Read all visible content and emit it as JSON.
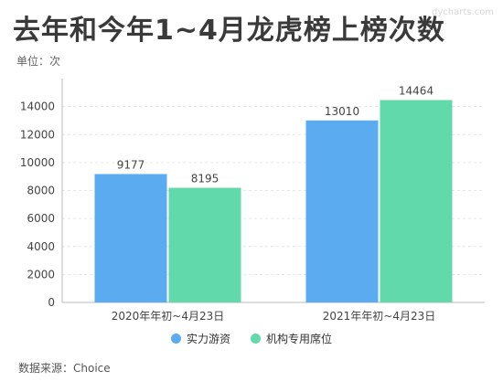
{
  "title": "去年和今年1~4月龙虎榜上榜次数",
  "unit_label": "单位：次",
  "watermark": "dycharts.com",
  "source": "数据来源：Choice",
  "colors": {
    "series_0": "#5aabf0",
    "series_1": "#62d9ab",
    "axis": "#bbbbbb",
    "grid": "#e6e6e6"
  },
  "chart_data": {
    "type": "bar",
    "categories": [
      "2020年年初~4月23日",
      "2021年年初~4月23日"
    ],
    "series": [
      {
        "name": "实力游资",
        "values": [
          9177,
          13010
        ]
      },
      {
        "name": "机构专用席位",
        "values": [
          8195,
          14464
        ]
      }
    ],
    "ylim": [
      0,
      16000
    ],
    "yticks": [
      0,
      2000,
      4000,
      6000,
      8000,
      10000,
      12000,
      14000
    ],
    "grid": true,
    "legend": "bottom-center"
  }
}
